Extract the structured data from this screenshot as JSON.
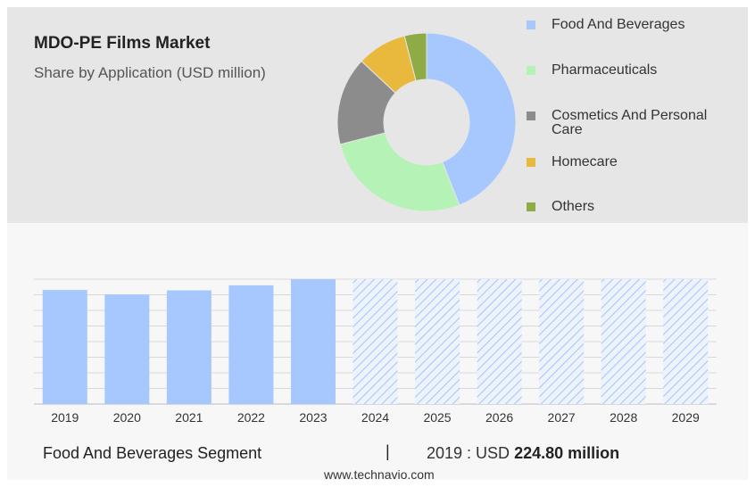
{
  "header": {
    "title": "MDO-PE Films Market",
    "subtitle": "Share by Application (USD million)"
  },
  "chart_data": [
    {
      "type": "pie",
      "title": "MDO-PE Films Market",
      "subtitle": "Share by Application (USD million)",
      "donut": true,
      "legend_position": "right",
      "slices": [
        {
          "label": "Food And Beverages",
          "value": 44,
          "color": "#a6c8ff"
        },
        {
          "label": "Pharmaceuticals",
          "value": 27,
          "color": "#b5f2b5"
        },
        {
          "label": "Cosmetics And Personal Care",
          "value": 16,
          "color": "#8c8c8c"
        },
        {
          "label": "Homecare",
          "value": 9,
          "color": "#e8b93c"
        },
        {
          "label": "Others",
          "value": 4,
          "color": "#8eab45"
        }
      ]
    },
    {
      "type": "bar",
      "categories": [
        "2019",
        "2020",
        "2021",
        "2022",
        "2023",
        "2024",
        "2025",
        "2026",
        "2027",
        "2028",
        "2029"
      ],
      "values": [
        224.8,
        216.0,
        224.0,
        234.0,
        246.0,
        null,
        null,
        null,
        null,
        null,
        null
      ],
      "forecast": [
        false,
        false,
        false,
        false,
        false,
        true,
        true,
        true,
        true,
        true,
        true
      ],
      "ylim": [
        0,
        246
      ],
      "grid": true,
      "colors": {
        "actual": "#a6c8ff",
        "forecast_hatch": "#a6c8ff"
      }
    }
  ],
  "footer": {
    "segment_label": "Food And Beverages Segment",
    "separator": "|",
    "value_prefix": "2019 : USD",
    "value_amount": "224.80 million",
    "source": "www.technavio.com"
  }
}
